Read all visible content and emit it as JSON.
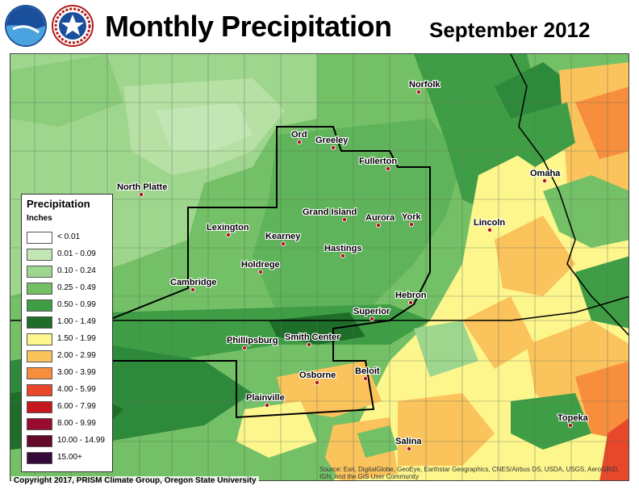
{
  "header": {
    "title": "Monthly Precipitation",
    "date": "September 2012",
    "logos": [
      {
        "name": "noaa-logo",
        "text": "NOAA"
      },
      {
        "name": "nws-logo",
        "text": "NATIONAL WEATHER SERVICE"
      }
    ]
  },
  "map": {
    "cities": [
      {
        "name": "Norfolk"
      },
      {
        "name": "Ord"
      },
      {
        "name": "Greeley"
      },
      {
        "name": "Fullerton"
      },
      {
        "name": "Omaha"
      },
      {
        "name": "North Platte"
      },
      {
        "name": "Grand Island"
      },
      {
        "name": "Aurora"
      },
      {
        "name": "York"
      },
      {
        "name": "Lincoln"
      },
      {
        "name": "Lexington"
      },
      {
        "name": "Kearney"
      },
      {
        "name": "Hastings"
      },
      {
        "name": "Holdrege"
      },
      {
        "name": "Cambridge"
      },
      {
        "name": "Hebron"
      },
      {
        "name": "Superior"
      },
      {
        "name": "Phillipsburg"
      },
      {
        "name": "Smith Center"
      },
      {
        "name": "Osborne"
      },
      {
        "name": "Beloit"
      },
      {
        "name": "Plainville"
      },
      {
        "name": "Topeka"
      },
      {
        "name": "Salina"
      }
    ]
  },
  "legend": {
    "title": "Precipitation",
    "units": "Inches",
    "classes": [
      {
        "label": "< 0.01",
        "color": "#ffffff"
      },
      {
        "label": "0.01 - 0.09",
        "color": "#c2e6b4"
      },
      {
        "label": "0.10 - 0.24",
        "color": "#9fd68e"
      },
      {
        "label": "0.25 - 0.49",
        "color": "#74c067"
      },
      {
        "label": "0.50 - 0.99",
        "color": "#3f9e45"
      },
      {
        "label": "1.00 - 1.49",
        "color": "#1e6e2a"
      },
      {
        "label": "1.50 - 1.99",
        "color": "#fdf68d"
      },
      {
        "label": "2.00 - 2.99",
        "color": "#fbc35c"
      },
      {
        "label": "3.00 - 3.99",
        "color": "#f68e3e"
      },
      {
        "label": "4.00 - 5.99",
        "color": "#e8472a"
      },
      {
        "label": "6.00 - 7.99",
        "color": "#c4181e"
      },
      {
        "label": "8.00 - 9.99",
        "color": "#9a0c2d"
      },
      {
        "label": "10.00 - 14.99",
        "color": "#640a28"
      },
      {
        "label": "15.00+",
        "color": "#35093a"
      }
    ]
  },
  "footer": {
    "copyright": "Copyright 2017, PRISM Climate Group, Oregon State University",
    "attribution": "Source: Esri, DigitalGlobe, GeoEye, Earthstar Geographics, CNES/Airbus DS, USDA, USGS, AeroGRID, IGN, and the GIS User Community"
  }
}
